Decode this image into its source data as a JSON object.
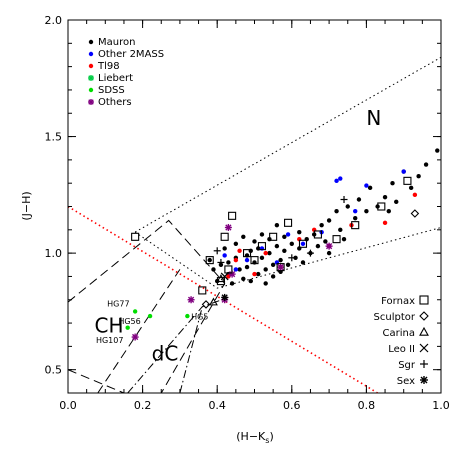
{
  "chart_data": {
    "type": "scatter",
    "xlabel": "(H−K",
    "xlabel_sub": "s",
    "xlabel_end": ")",
    "ylabel": "(J−H)",
    "xlim": [
      0.0,
      1.0
    ],
    "ylim": [
      0.4,
      2.0
    ],
    "xticks": [
      0.0,
      0.2,
      0.4,
      0.6,
      0.8,
      1.0
    ],
    "xtick_labels": [
      "0.0",
      "0.2",
      "0.4",
      "0.6",
      "0.8",
      "1.0"
    ],
    "yticks": [
      0.5,
      1.0,
      1.5,
      2.0
    ],
    "ytick_labels": [
      "0.5",
      "1.0",
      "1.5",
      "2.0"
    ],
    "legend_position": "top-left",
    "series": [
      {
        "name": "Mauron",
        "color": "#000000",
        "marker": "dot",
        "points": [
          [
            0.38,
            0.97
          ],
          [
            0.39,
            0.93
          ],
          [
            0.4,
            0.88
          ],
          [
            0.41,
            0.95
          ],
          [
            0.42,
            1.02
          ],
          [
            0.43,
            0.96
          ],
          [
            0.43,
            0.91
          ],
          [
            0.44,
            0.87
          ],
          [
            0.45,
            0.98
          ],
          [
            0.45,
            1.04
          ],
          [
            0.46,
            0.93
          ],
          [
            0.47,
            0.89
          ],
          [
            0.47,
            1.07
          ],
          [
            0.48,
            0.99
          ],
          [
            0.48,
            0.94
          ],
          [
            0.49,
            1.01
          ],
          [
            0.49,
            0.88
          ],
          [
            0.5,
            0.96
          ],
          [
            0.5,
            1.05
          ],
          [
            0.51,
            0.91
          ],
          [
            0.51,
            1.02
          ],
          [
            0.52,
            0.98
          ],
          [
            0.52,
            1.08
          ],
          [
            0.53,
            0.93
          ],
          [
            0.53,
            0.87
          ],
          [
            0.54,
            1.0
          ],
          [
            0.54,
            1.06
          ],
          [
            0.55,
            0.95
          ],
          [
            0.55,
            0.9
          ],
          [
            0.56,
            1.03
          ],
          [
            0.56,
            1.12
          ],
          [
            0.57,
            0.97
          ],
          [
            0.57,
            0.92
          ],
          [
            0.58,
            1.01
          ],
          [
            0.58,
            1.07
          ],
          [
            0.59,
            0.95
          ],
          [
            0.6,
            1.04
          ],
          [
            0.61,
            0.98
          ],
          [
            0.62,
            1.09
          ],
          [
            0.62,
            1.02
          ],
          [
            0.63,
            0.96
          ],
          [
            0.64,
            1.06
          ],
          [
            0.65,
            1.0
          ],
          [
            0.66,
            1.08
          ],
          [
            0.67,
            1.03
          ],
          [
            0.68,
            1.12
          ],
          [
            0.69,
            1.05
          ],
          [
            0.7,
            1.14
          ],
          [
            0.7,
            1.0
          ],
          [
            0.72,
            1.18
          ],
          [
            0.73,
            1.1
          ],
          [
            0.74,
            1.06
          ],
          [
            0.75,
            1.2
          ],
          [
            0.77,
            1.15
          ],
          [
            0.78,
            1.23
          ],
          [
            0.8,
            1.18
          ],
          [
            0.81,
            1.28
          ],
          [
            0.83,
            1.2
          ],
          [
            0.85,
            1.24
          ],
          [
            0.86,
            1.18
          ],
          [
            0.87,
            1.3
          ],
          [
            0.88,
            1.22
          ],
          [
            0.9,
            1.35
          ],
          [
            0.92,
            1.28
          ],
          [
            0.94,
            1.33
          ],
          [
            0.96,
            1.38
          ],
          [
            0.99,
            1.44
          ]
        ]
      },
      {
        "name": "Other 2MASS",
        "color": "#0000ff",
        "marker": "dot",
        "points": [
          [
            0.42,
            0.99
          ],
          [
            0.45,
            0.93
          ],
          [
            0.48,
            0.97
          ],
          [
            0.52,
            1.02
          ],
          [
            0.56,
            0.96
          ],
          [
            0.59,
            1.08
          ],
          [
            0.63,
            1.04
          ],
          [
            0.68,
            1.09
          ],
          [
            0.72,
            1.31
          ],
          [
            0.73,
            1.32
          ],
          [
            0.77,
            1.18
          ],
          [
            0.8,
            1.29
          ],
          [
            0.9,
            1.35
          ]
        ]
      },
      {
        "name": "Tl98",
        "color": "#ff0000",
        "marker": "dot",
        "points": [
          [
            0.43,
            0.9
          ],
          [
            0.45,
            0.97
          ],
          [
            0.46,
            1.01
          ],
          [
            0.5,
            0.91
          ],
          [
            0.53,
            1.0
          ],
          [
            0.57,
            0.94
          ],
          [
            0.62,
            1.06
          ],
          [
            0.66,
            1.1
          ],
          [
            0.7,
            1.03
          ],
          [
            0.76,
            1.12
          ],
          [
            0.85,
            1.13
          ],
          [
            0.93,
            1.25
          ]
        ]
      },
      {
        "name": "Liebert",
        "color": "#00cc44",
        "marker": "asterisk",
        "points": []
      },
      {
        "name": "SDSS",
        "color": "#00dd00",
        "marker": "dot",
        "points": [
          [
            0.18,
            0.75
          ],
          [
            0.22,
            0.73
          ],
          [
            0.16,
            0.68
          ],
          [
            0.32,
            0.73
          ]
        ]
      },
      {
        "name": "Others",
        "color": "#800080",
        "marker": "asterisk",
        "points": [
          [
            0.18,
            0.64
          ],
          [
            0.33,
            0.8
          ],
          [
            0.42,
            0.8
          ],
          [
            0.43,
            1.11
          ],
          [
            0.44,
            0.91
          ],
          [
            0.57,
            0.94
          ],
          [
            0.7,
            1.03
          ]
        ]
      },
      {
        "name": "Fornax",
        "color": "#000000",
        "marker": "square",
        "points": [
          [
            0.18,
            1.07
          ],
          [
            0.36,
            0.84
          ],
          [
            0.38,
            0.97
          ],
          [
            0.41,
            0.88
          ],
          [
            0.43,
            0.93
          ],
          [
            0.42,
            1.07
          ],
          [
            0.44,
            1.16
          ],
          [
            0.48,
            1.0
          ],
          [
            0.5,
            0.97
          ],
          [
            0.52,
            1.03
          ],
          [
            0.55,
            1.07
          ],
          [
            0.57,
            0.94
          ],
          [
            0.59,
            1.13
          ],
          [
            0.63,
            1.04
          ],
          [
            0.67,
            1.08
          ],
          [
            0.72,
            1.06
          ],
          [
            0.77,
            1.12
          ],
          [
            0.84,
            1.2
          ],
          [
            0.91,
            1.31
          ]
        ]
      },
      {
        "name": "Sculptor",
        "color": "#000000",
        "marker": "diamond",
        "points": [
          [
            0.37,
            0.78
          ],
          [
            0.93,
            1.17
          ]
        ]
      },
      {
        "name": "Carina",
        "color": "#000000",
        "marker": "triangle",
        "points": [
          [
            0.39,
            0.79
          ],
          [
            0.41,
            0.89
          ]
        ]
      },
      {
        "name": "Leo II",
        "color": "#000000",
        "marker": "x",
        "points": [
          [
            0.42,
            0.9
          ]
        ]
      },
      {
        "name": "Sgr",
        "color": "#000000",
        "marker": "plus",
        "points": [
          [
            0.41,
            0.96
          ],
          [
            0.4,
            1.01
          ],
          [
            0.6,
            0.98
          ],
          [
            0.65,
            1.0
          ],
          [
            0.74,
            1.23
          ]
        ]
      },
      {
        "name": "Sex",
        "color": "#000000",
        "marker": "asterisk",
        "points": [
          [
            0.42,
            0.81
          ]
        ]
      }
    ],
    "legend_left": [
      "Mauron",
      "Other 2MASS",
      "Tl98",
      "Liebert",
      "SDSS",
      "Others"
    ],
    "legend_right": [
      "Fornax",
      "Sculptor",
      "Carina",
      "Leo II",
      "Sgr",
      "Sex"
    ],
    "region_labels": [
      {
        "text": "N",
        "x": 0.82,
        "y": 1.55
      },
      {
        "text": "CH",
        "x": 0.11,
        "y": 0.66
      },
      {
        "text": "dC",
        "x": 0.26,
        "y": 0.54
      }
    ],
    "point_labels": [
      {
        "text": "HG77",
        "x": 0.105,
        "y": 0.77
      },
      {
        "text": "HG56",
        "x": 0.135,
        "y": 0.695
      },
      {
        "text": "HG5",
        "x": 0.33,
        "y": 0.715
      },
      {
        "text": "HG107",
        "x": 0.075,
        "y": 0.615
      }
    ],
    "lines": [
      {
        "style": "dotted",
        "color": "#ff0000",
        "points": [
          [
            0.0,
            1.2
          ],
          [
            0.83,
            0.4
          ]
        ]
      },
      {
        "style": "dotted",
        "color": "#000000",
        "points": [
          [
            0.18,
            1.09
          ],
          [
            1.0,
            1.84
          ]
        ]
      },
      {
        "style": "dotted",
        "color": "#000000",
        "points": [
          [
            0.18,
            1.09
          ],
          [
            0.4,
            0.85
          ],
          [
            1.0,
            1.11
          ]
        ]
      },
      {
        "style": "dashed",
        "color": "#000000",
        "points": [
          [
            0.0,
            0.79
          ],
          [
            0.27,
            1.14
          ],
          [
            0.42,
            0.87
          ],
          [
            0.25,
            0.4
          ]
        ]
      },
      {
        "style": "dashed",
        "color": "#000000",
        "points": [
          [
            0.08,
            0.4
          ],
          [
            0.3,
            0.93
          ]
        ]
      },
      {
        "style": "dashed",
        "color": "#000000",
        "points": [
          [
            0.0,
            0.5
          ],
          [
            0.15,
            0.4
          ]
        ]
      },
      {
        "style": "dashdot",
        "color": "#000000",
        "points": [
          [
            0.16,
            0.4
          ],
          [
            0.36,
            0.77
          ],
          [
            0.43,
            0.81
          ]
        ]
      },
      {
        "style": "dashdot",
        "color": "#000000",
        "points": [
          [
            0.3,
            0.4
          ],
          [
            0.36,
            0.77
          ]
        ]
      }
    ]
  }
}
